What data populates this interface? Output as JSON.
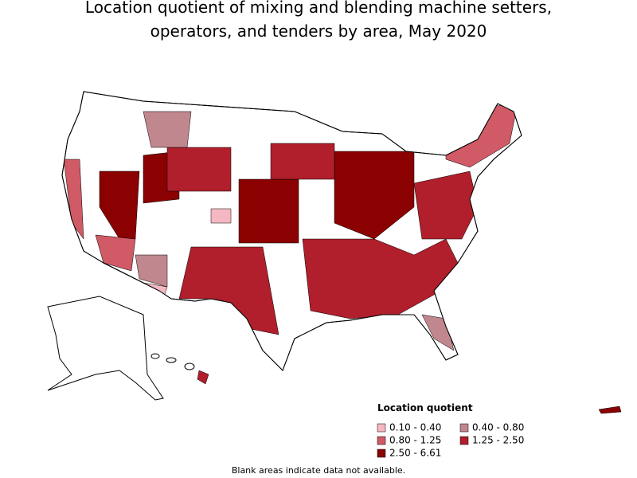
{
  "header": {
    "title_lines": [
      "Location quotient of mixing and blending machine setters,",
      "operators, and tenders by area, May 2020"
    ]
  },
  "legend": {
    "title": "Location quotient",
    "items": [
      {
        "label": "0.10 - 0.40",
        "color": "#f5b8c2"
      },
      {
        "label": "0.40 - 0.80",
        "color": "#c0888e"
      },
      {
        "label": "0.80 - 1.25",
        "color": "#d05a66"
      },
      {
        "label": "1.25 - 2.50",
        "color": "#b01f2b"
      },
      {
        "label": "2.50 - 6.61",
        "color": "#8b0000"
      }
    ]
  },
  "footnote": "Blank areas indicate data not available."
}
